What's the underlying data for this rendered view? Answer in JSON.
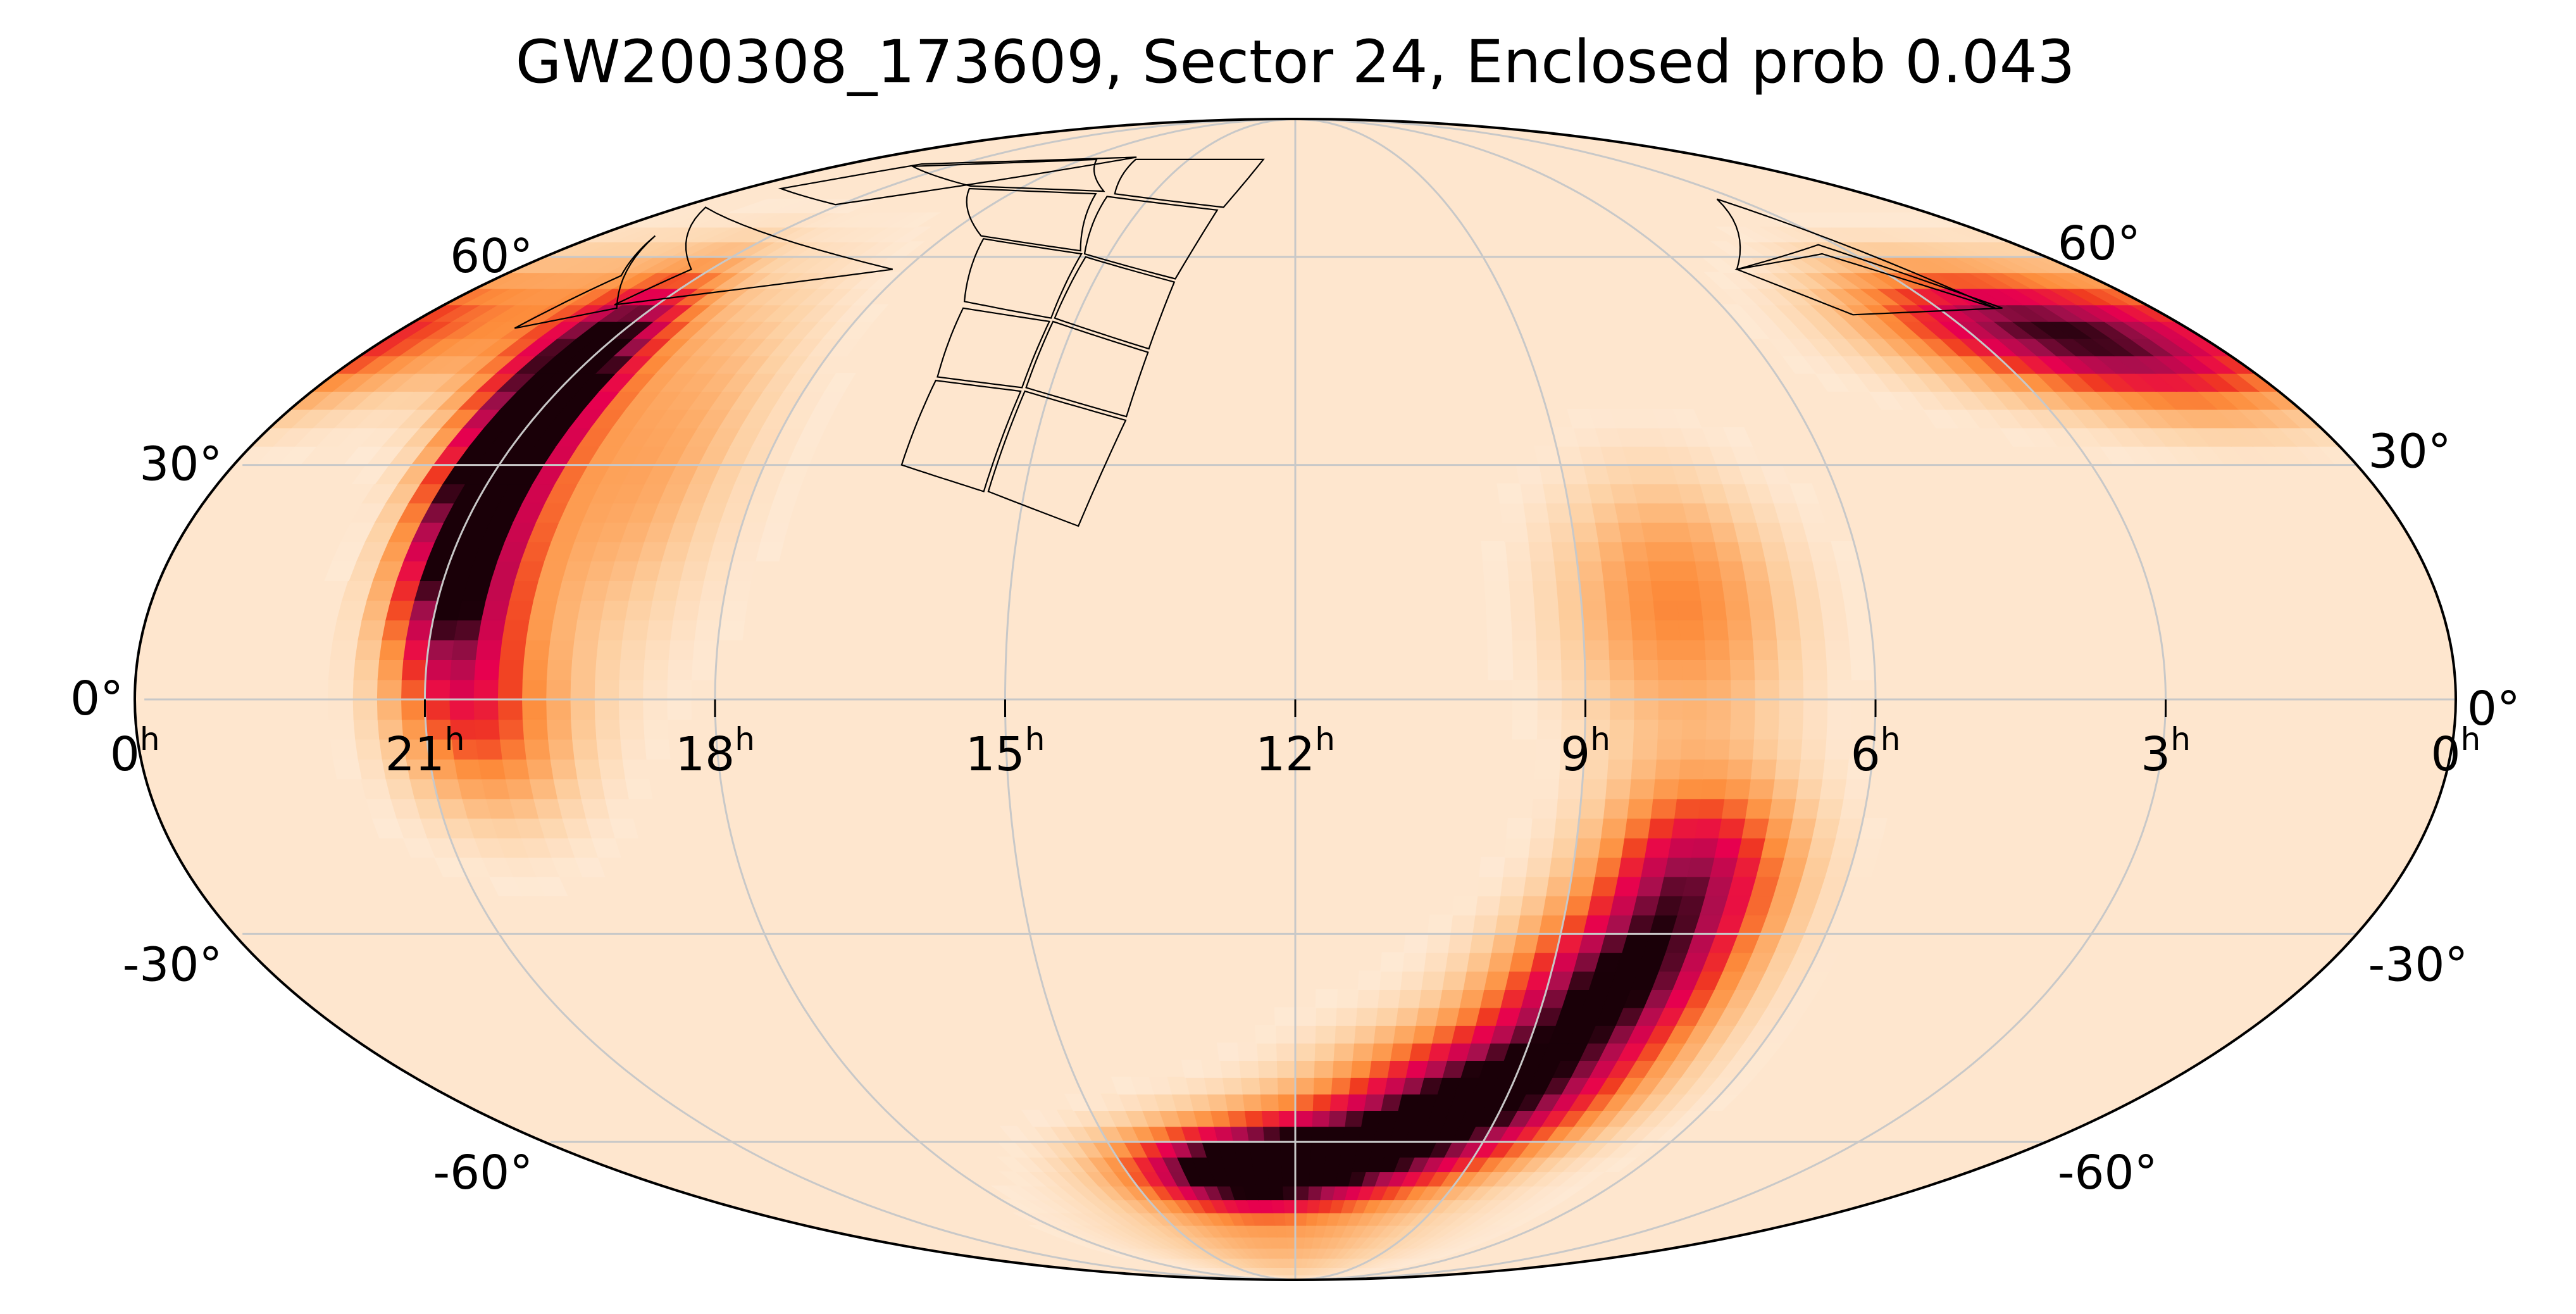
{
  "chart_data": {
    "type": "heatmap",
    "projection": "mollweide",
    "title": "GW200308_173609, Sector 24, Enclosed prob 0.043",
    "colormap": [
      "#fff5eb",
      "#fee6ce",
      "#fdd0a2",
      "#fdae6b",
      "#fd8d3c",
      "#f03b20",
      "#e7004f",
      "#a50f4d",
      "#1a0008"
    ],
    "ra_ticks": [
      {
        "label": "0",
        "unit": "h",
        "ra_hours": 24
      },
      {
        "label": "21",
        "unit": "h",
        "ra_hours": 21
      },
      {
        "label": "18",
        "unit": "h",
        "ra_hours": 18
      },
      {
        "label": "15",
        "unit": "h",
        "ra_hours": 15
      },
      {
        "label": "12",
        "unit": "h",
        "ra_hours": 12
      },
      {
        "label": "9",
        "unit": "h",
        "ra_hours": 9
      },
      {
        "label": "6",
        "unit": "h",
        "ra_hours": 6
      },
      {
        "label": "3",
        "unit": "h",
        "ra_hours": 3
      },
      {
        "label": "0",
        "unit": "h",
        "ra_hours": 0
      }
    ],
    "dec_ticks": [
      {
        "label": "60°",
        "dec": 60
      },
      {
        "label": "30°",
        "dec": 30
      },
      {
        "label": "0°",
        "dec": 0
      },
      {
        "label": "-30°",
        "dec": -30
      },
      {
        "label": "-60°",
        "dec": -60
      }
    ],
    "probability_blobs": [
      {
        "ra_hours": 21.0,
        "dec": 29,
        "sigma_ra": 0.45,
        "sigma_dec": 10,
        "peak": 1.0
      },
      {
        "ra_hours": 21.2,
        "dec": 44,
        "sigma_ra": 0.6,
        "sigma_dec": 9,
        "peak": 0.75
      },
      {
        "ra_hours": 20.8,
        "dec": 12,
        "sigma_ra": 0.5,
        "sigma_dec": 9,
        "peak": 0.65
      },
      {
        "ra_hours": 20.4,
        "dec": -4,
        "sigma_ra": 0.7,
        "sigma_dec": 9,
        "peak": 0.45
      },
      {
        "ra_hours": 19.4,
        "dec": 30,
        "sigma_ra": 0.9,
        "sigma_dec": 18,
        "peak": 0.35
      },
      {
        "ra_hours": 22.6,
        "dec": 52,
        "sigma_ra": 1.5,
        "sigma_dec": 8,
        "peak": 0.35
      },
      {
        "ra_hours": 2.6,
        "dec": 50,
        "sigma_ra": 1.4,
        "sigma_dec": 7,
        "peak": 0.65
      },
      {
        "ra_hours": 1.0,
        "dec": 45,
        "sigma_ra": 1.2,
        "sigma_dec": 7,
        "peak": 0.5
      },
      {
        "ra_hours": 8.0,
        "dec": 12,
        "sigma_ra": 0.9,
        "sigma_dec": 12,
        "peak": 0.45
      },
      {
        "ra_hours": 7.7,
        "dec": -22,
        "sigma_ra": 0.8,
        "sigma_dec": 9,
        "peak": 0.75
      },
      {
        "ra_hours": 8.3,
        "dec": -38,
        "sigma_ra": 1.0,
        "sigma_dec": 8,
        "peak": 0.8
      },
      {
        "ra_hours": 9.4,
        "dec": -52,
        "sigma_ra": 1.4,
        "sigma_dec": 7,
        "peak": 0.85
      },
      {
        "ra_hours": 11.2,
        "dec": -62,
        "sigma_ra": 1.7,
        "sigma_dec": 6,
        "peak": 0.8
      },
      {
        "ra_hours": 13.3,
        "dec": -65,
        "sigma_ra": 1.4,
        "sigma_dec": 5,
        "peak": 0.75
      },
      {
        "ra_hours": 12.5,
        "dec": -78,
        "sigma_ra": 3.0,
        "sigma_dec": 8,
        "peak": 0.3
      }
    ],
    "footprint_quads": [
      [
        [
          14.35,
          22.0
        ],
        [
          15.4,
          26.5
        ],
        [
          15.3,
          40.0
        ],
        [
          14.0,
          36.0
        ]
      ],
      [
        [
          15.45,
          26.5
        ],
        [
          16.45,
          30.0
        ],
        [
          16.45,
          41.5
        ],
        [
          15.35,
          40.0
        ]
      ],
      [
        [
          14.0,
          36.5
        ],
        [
          15.3,
          40.5
        ],
        [
          15.3,
          50.0
        ],
        [
          13.9,
          45.5
        ]
      ],
      [
        [
          15.35,
          40.5
        ],
        [
          16.45,
          42.0
        ],
        [
          16.65,
          52.0
        ],
        [
          15.35,
          50.0
        ]
      ],
      [
        [
          13.9,
          46.0
        ],
        [
          15.3,
          50.5
        ],
        [
          15.35,
          60.0
        ],
        [
          13.8,
          56.0
        ]
      ],
      [
        [
          15.35,
          50.5
        ],
        [
          16.7,
          53.0
        ],
        [
          17.3,
          63.0
        ],
        [
          15.45,
          60.5
        ]
      ],
      [
        [
          13.8,
          56.5
        ],
        [
          15.4,
          60.5
        ],
        [
          15.9,
          70.5
        ],
        [
          13.5,
          68.0
        ]
      ],
      [
        [
          15.5,
          61.0
        ],
        [
          17.4,
          63.5
        ],
        [
          19.1,
          72.0
        ],
        [
          16.2,
          71.0
        ]
      ],
      [
        [
          13.4,
          68.5
        ],
        [
          15.8,
          71.0
        ],
        [
          16.5,
          78.0
        ],
        [
          12.9,
          78.0
        ]
      ],
      [
        [
          16.1,
          71.5
        ],
        [
          19.2,
          72.5
        ],
        [
          22.0,
          76.5
        ],
        [
          17.6,
          78.0
        ]
      ],
      [
        [
          16.6,
          78.5
        ],
        [
          22.0,
          77.0
        ],
        [
          23.2,
          72.0
        ],
        [
          21.1,
          69.0
        ]
      ],
      [
        [
          23.5,
          68.5
        ],
        [
          21.3,
          58.0
        ],
        [
          21.6,
          52.5
        ],
        [
          18.2,
          58.0
        ]
      ],
      [
        [
          23.0,
          63.5
        ],
        [
          22.2,
          57.0
        ],
        [
          22.5,
          49.0
        ],
        [
          21.5,
          52.0
        ]
      ],
      [
        [
          3.4,
          70.0
        ],
        [
          5.2,
          58.0
        ],
        [
          3.5,
          60.5
        ],
        [
          2.2,
          52.0
        ]
      ],
      [
        [
          2.1,
          52.0
        ],
        [
          4.3,
          51.0
        ],
        [
          5.2,
          58.0
        ],
        [
          3.3,
          62.0
        ]
      ]
    ]
  }
}
